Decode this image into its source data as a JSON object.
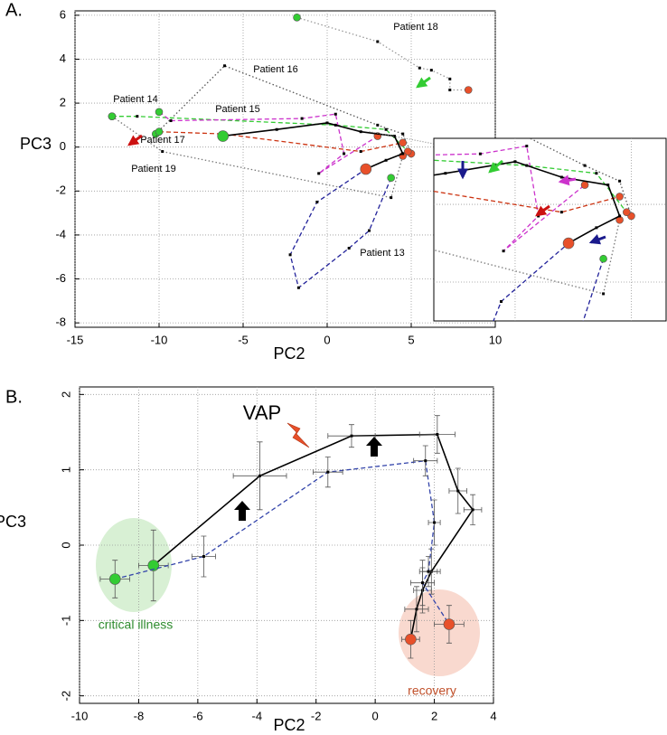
{
  "chart_data": [
    {
      "type": "line",
      "panel_label": "A.",
      "x_label": "PC2",
      "y_label": "PC3",
      "xlim": [
        -15,
        10
      ],
      "xticks": [
        -15,
        -10,
        -5,
        0,
        5,
        10
      ],
      "ylim": [
        -8.2,
        6.2
      ],
      "yticks": [
        -8,
        -6,
        -4,
        -2,
        0,
        2,
        4,
        6
      ],
      "grid": true,
      "start_color": "#33cc33",
      "end_color": "#e8502a",
      "marker_size": 4,
      "series": [
        {
          "name": "Patient 18",
          "color": "#999999",
          "line_style": "dotted",
          "x": [
            -1.8,
            3.0,
            5.5,
            6.2,
            7.3,
            7.3,
            8.4
          ],
          "values": [
            5.9,
            4.8,
            3.6,
            3.5,
            3.1,
            2.6,
            2.6
          ]
        },
        {
          "name": "Patient 16",
          "color": "#555555",
          "line_style": "dotted",
          "x": [
            -10.2,
            -6.1,
            3.0,
            4.5,
            5.0
          ],
          "values": [
            0.6,
            3.7,
            1.0,
            0.6,
            -0.3
          ]
        },
        {
          "name": "Patient 14",
          "color": "#33cc33",
          "line_style": "dashed",
          "x": [
            -12.8,
            -11.3,
            0.5,
            3.5,
            4.8
          ],
          "values": [
            1.4,
            1.4,
            1.0,
            0.8,
            -0.2
          ]
        },
        {
          "name": "Patient 15",
          "color": "#cc33cc",
          "line_style": "dashed",
          "x": [
            -10.0,
            -9.3,
            -1.5,
            0.5,
            1.0,
            -0.5,
            3.0
          ],
          "values": [
            1.6,
            1.2,
            1.3,
            1.5,
            -0.3,
            -1.2,
            0.5
          ]
        },
        {
          "name": "Patient 17",
          "color": "#cc3311",
          "line_style": "dashed",
          "x": [
            -10.0,
            -6.2,
            2.0,
            4.5
          ],
          "values": [
            0.7,
            0.6,
            -0.2,
            0.2
          ]
        },
        {
          "name": "Patient 19",
          "color": "#777777",
          "line_style": "dotted",
          "x": [
            -12.8,
            -9.8,
            3.8,
            4.5
          ],
          "values": [
            1.4,
            -0.2,
            -2.3,
            -0.4
          ]
        },
        {
          "name": "Patient 13",
          "color": "#22229a",
          "line_style": "dashed",
          "x": [
            3.8,
            2.5,
            1.3,
            -1.7,
            -2.2,
            -0.6,
            2.3
          ],
          "values": [
            -1.4,
            -3.8,
            -4.6,
            -6.4,
            -4.9,
            -2.5,
            -1.0
          ]
        },
        {
          "color": "#000000",
          "line_style": "solid",
          "marker_size": 6,
          "x": [
            -6.2,
            -3.0,
            0.0,
            2.0,
            4.0,
            4.5,
            3.5,
            2.3
          ],
          "values": [
            0.5,
            0.8,
            1.1,
            0.7,
            0.5,
            -0.3,
            -0.6,
            -1.0
          ]
        }
      ],
      "inset": {
        "xlim": [
          -3.5,
          6.5
        ],
        "ylim": [
          -3,
          1.7
        ]
      }
    },
    {
      "type": "line",
      "panel_label": "B.",
      "x_label": "PC2",
      "y_label": "PC3",
      "xlim": [
        -10,
        4
      ],
      "xticks": [
        -10,
        -8,
        -6,
        -4,
        -2,
        0,
        2,
        4
      ],
      "ylim": [
        -2.1,
        2.1
      ],
      "yticks": [
        -2,
        -1,
        0,
        1,
        2
      ],
      "grid": true,
      "start_color": "#33cc33",
      "end_color": "#e8502a",
      "marker_size": 6,
      "series": [
        {
          "color": "#000000",
          "line_style": "solid",
          "x": [
            -7.5,
            -3.9,
            -0.8,
            2.1,
            2.8,
            3.3,
            1.9,
            1.6,
            1.4,
            1.2
          ],
          "values": [
            -0.27,
            0.92,
            1.45,
            1.47,
            0.72,
            0.47,
            -0.35,
            -0.6,
            -0.85,
            -1.25
          ],
          "x_err": [
            0.5,
            0.9,
            0.8,
            0.6,
            0.3,
            0.3,
            0.3,
            0.3,
            0.4,
            0.3
          ],
          "y_err": [
            0.47,
            0.45,
            0.15,
            0.25,
            0.3,
            0.2,
            0.3,
            0.3,
            0.3,
            0.25
          ]
        },
        {
          "color": "#3344aa",
          "line_style": "dashed",
          "x": [
            -8.8,
            -5.8,
            -1.6,
            1.7,
            2.0,
            1.8,
            1.6,
            2.5
          ],
          "values": [
            -0.45,
            -0.15,
            0.97,
            1.12,
            0.3,
            -0.35,
            -0.5,
            -1.05
          ],
          "x_err": [
            0.5,
            0.4,
            0.5,
            0.4,
            0.2,
            0.3,
            0.4,
            0.5
          ],
          "y_err": [
            0.25,
            0.27,
            0.2,
            0.2,
            0.3,
            0.2,
            0.3,
            0.25
          ]
        }
      ],
      "annotations": [
        {
          "text": "VAP",
          "color": "#000000"
        },
        {
          "text": "critical illness",
          "color": "#2e8b2e"
        },
        {
          "text": "recovery",
          "color": "#c0502a"
        }
      ]
    }
  ]
}
